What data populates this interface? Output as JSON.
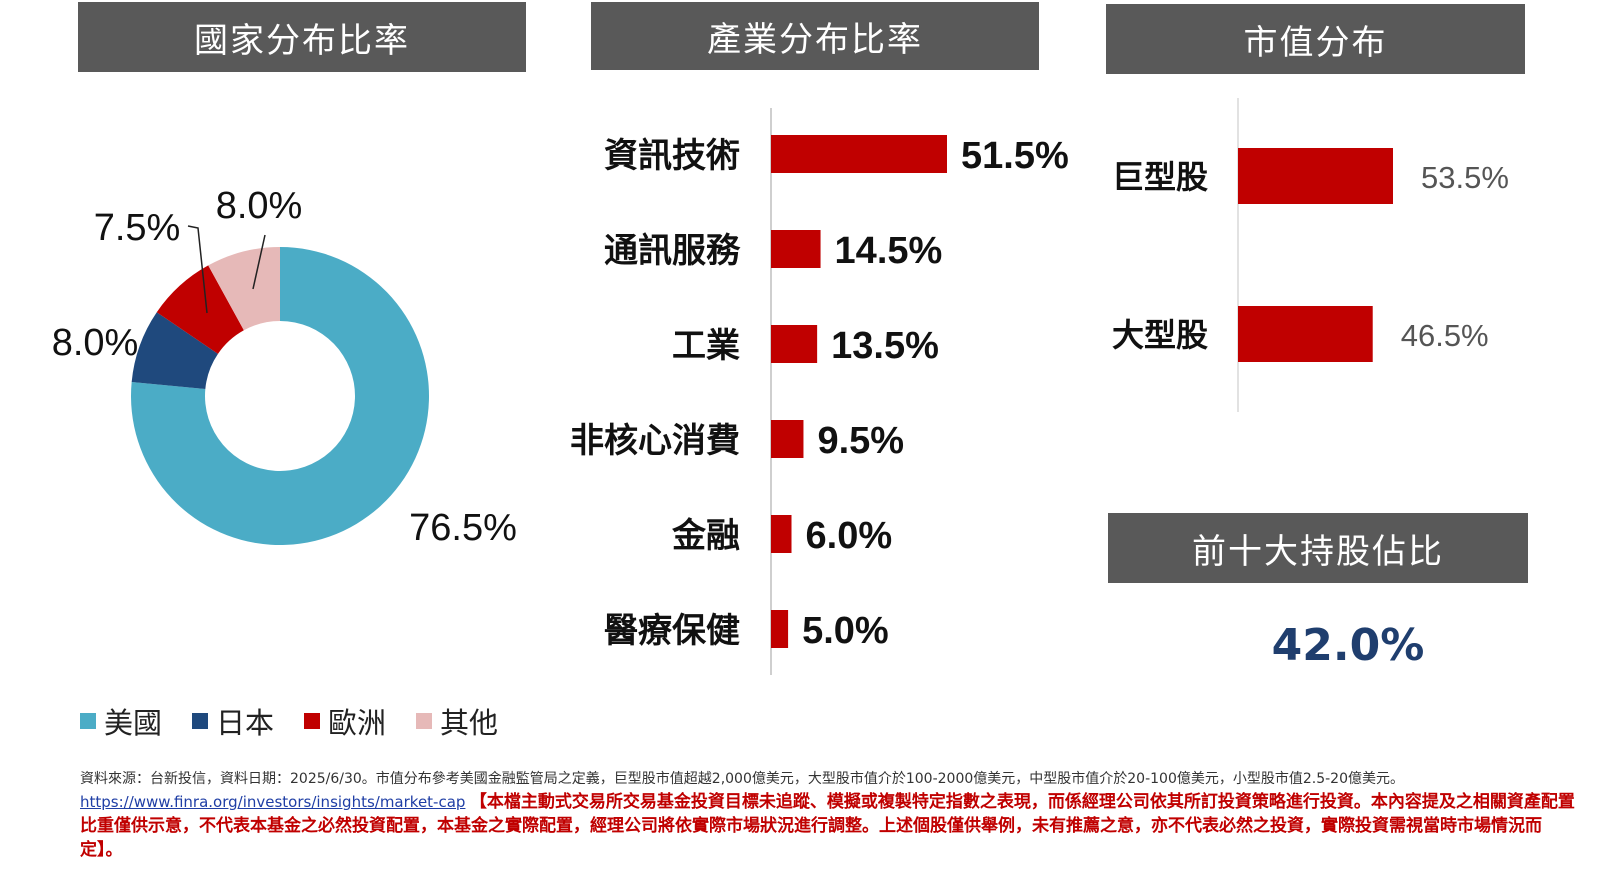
{
  "headers": {
    "country": "國家分布比率",
    "industry": "產業分布比率",
    "marketcap": "市值分布",
    "top10": "前十大持股佔比"
  },
  "top10_value": "42.0%",
  "colors": {
    "us": "#4bacc6",
    "japan": "#1f497d",
    "europe": "#c00000",
    "other": "#e6b9b8",
    "bar": "#c00000",
    "header_bg": "#595959",
    "top10_value": "#1f3e6e"
  },
  "chart_data": [
    {
      "type": "pie",
      "labels": [
        "美國",
        "日本",
        "歐洲",
        "其他"
      ],
      "values": [
        76.5,
        8.0,
        7.5,
        8.0
      ],
      "value_labels": [
        "76.5%",
        "8.0%",
        "7.5%",
        "8.0%"
      ],
      "colors": [
        "#4bacc6",
        "#1f497d",
        "#c00000",
        "#e6b9b8"
      ],
      "donut": true,
      "legend": "bottom"
    },
    {
      "type": "bar",
      "orientation": "horizontal",
      "categories": [
        "資訊技術",
        "通訊服務",
        "工業",
        "非核心消費",
        "金融",
        "醫療保健"
      ],
      "values": [
        51.5,
        14.5,
        13.5,
        9.5,
        6.0,
        5.0
      ],
      "value_labels": [
        "51.5%",
        "14.5%",
        "13.5%",
        "9.5%",
        "6.0%",
        "5.0%"
      ],
      "grid": false
    },
    {
      "type": "bar",
      "orientation": "horizontal",
      "categories": [
        "巨型股",
        "大型股"
      ],
      "values": [
        53.5,
        46.5
      ],
      "value_labels": [
        "53.5%",
        "46.5%"
      ],
      "grid": false
    }
  ],
  "footer": {
    "source": "資料來源：台新投信，資料日期：2025/6/30。市值分布參考美國金融監管局之定義，巨型股市值超越2,000億美元，大型股市值介於100-2000億美元，中型股市值介於20-100億美元，小型股市值2.5-20億美元。",
    "link": "https://www.finra.org/investors/insights/market-cap",
    "disclaimer": "【本檔主動式交易所交易基金投資目標未追蹤、模擬或複製特定指數之表現，而係經理公司依其所訂投資策略進行投資。本內容提及之相關資產配置比重僅供示意，不代表本基金之必然投資配置，本基金之實際配置，經理公司將依實際市場狀況進行調整。上述個股僅供舉例，未有推薦之意，亦不代表必然之投資，實際投資需視當時市場情況而定】。"
  }
}
